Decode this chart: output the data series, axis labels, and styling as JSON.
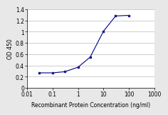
{
  "x": [
    0.03,
    0.1,
    0.3,
    1,
    3,
    10,
    30,
    100
  ],
  "y": [
    0.27,
    0.27,
    0.29,
    0.37,
    0.55,
    1.01,
    1.28,
    1.29
  ],
  "line_color": "#00008B",
  "marker_color": "#1a1a8c",
  "marker_size": 4,
  "xlabel": "Recombinant Protein Concentration (ng/ml)",
  "ylabel": "OD 450",
  "xlim": [
    0.01,
    1000
  ],
  "ylim": [
    0,
    1.4
  ],
  "yticks": [
    0,
    0.2,
    0.4,
    0.6,
    0.8,
    1.0,
    1.2,
    1.4
  ],
  "xtick_positions": [
    0.01,
    0.1,
    1,
    10,
    100,
    1000
  ],
  "xtick_labels": [
    "0.01",
    "0.1",
    "1",
    "10",
    "100",
    "1000"
  ],
  "xlabel_fontsize": 5.5,
  "ylabel_fontsize": 5.5,
  "tick_fontsize": 5.5,
  "fig_facecolor": "#e8e8e8",
  "plot_facecolor": "#ffffff",
  "grid_color": "#bbbbbb"
}
